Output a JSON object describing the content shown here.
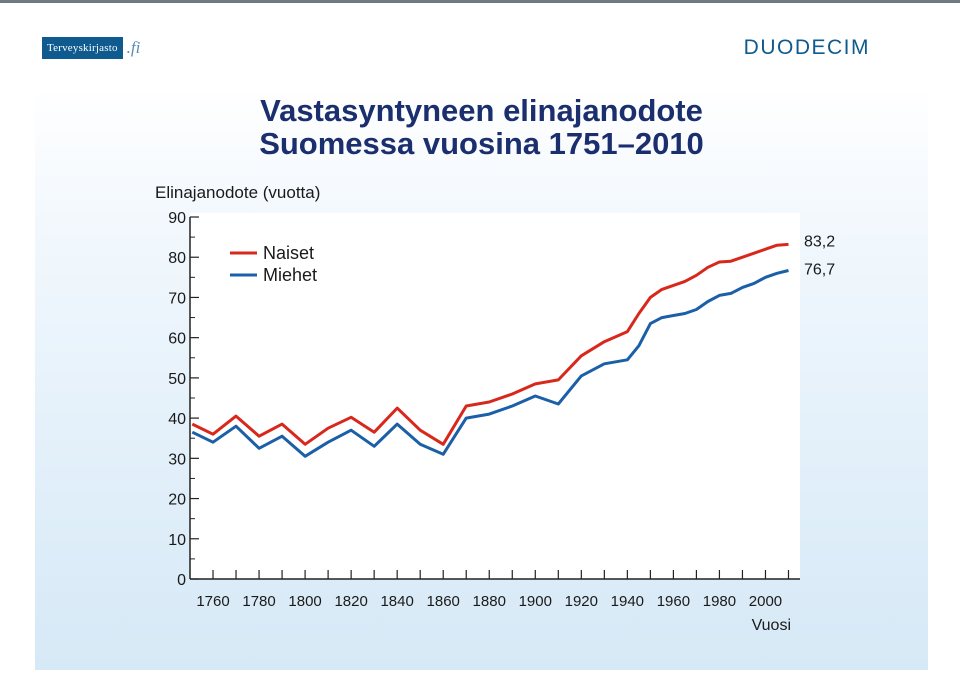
{
  "header": {
    "brand_left": "Terveyskirjasto",
    "brand_left_tld": ".fi",
    "brand_right": "DUODECIM"
  },
  "colors": {
    "naiset": "#d8281c",
    "miehet": "#1b5fa8",
    "title": "#1b2f6e",
    "brand": "#0f5a8e"
  },
  "chart_data": {
    "type": "line",
    "title_line1": "Vastasyntyneen elinajanodote",
    "title_line2": "Suomessa vuosina 1751–2010",
    "ylabel": "Elinajanodote (vuotta)",
    "xlabel": "Vuosi",
    "xlim": [
      1750,
      2015
    ],
    "ylim": [
      0,
      90
    ],
    "x_ticks": [
      1760,
      1770,
      1780,
      1790,
      1800,
      1810,
      1820,
      1830,
      1840,
      1850,
      1860,
      1870,
      1880,
      1890,
      1900,
      1910,
      1920,
      1930,
      1940,
      1950,
      1960,
      1970,
      1980,
      1990,
      2000,
      2010
    ],
    "x_tick_labels": [
      "1760",
      "1780",
      "1800",
      "1820",
      "1840",
      "1860",
      "1880",
      "1900",
      "1920",
      "1940",
      "1960",
      "1980",
      "2000"
    ],
    "y_ticks": [
      0,
      10,
      20,
      30,
      40,
      50,
      60,
      70,
      80,
      90
    ],
    "legend_position": "top-left",
    "grid": false,
    "series": [
      {
        "name": "Naiset",
        "color": "#d8281c",
        "end_label": "83,2",
        "points": [
          [
            1751,
            38.5
          ],
          [
            1760,
            36
          ],
          [
            1770,
            40.5
          ],
          [
            1780,
            35.5
          ],
          [
            1790,
            38.5
          ],
          [
            1800,
            33.5
          ],
          [
            1810,
            37.5
          ],
          [
            1820,
            40.2
          ],
          [
            1830,
            36.5
          ],
          [
            1840,
            42.5
          ],
          [
            1850,
            37
          ],
          [
            1860,
            33.5
          ],
          [
            1870,
            43
          ],
          [
            1880,
            44
          ],
          [
            1890,
            46
          ],
          [
            1900,
            48.5
          ],
          [
            1910,
            49.5
          ],
          [
            1920,
            55.5
          ],
          [
            1930,
            59
          ],
          [
            1940,
            61.5
          ],
          [
            1945,
            66
          ],
          [
            1950,
            70
          ],
          [
            1955,
            72
          ],
          [
            1960,
            73
          ],
          [
            1965,
            74
          ],
          [
            1970,
            75.5
          ],
          [
            1975,
            77.5
          ],
          [
            1980,
            78.8
          ],
          [
            1985,
            79
          ],
          [
            1990,
            80
          ],
          [
            1995,
            81
          ],
          [
            2000,
            82
          ],
          [
            2005,
            83
          ],
          [
            2010,
            83.2
          ]
        ]
      },
      {
        "name": "Miehet",
        "color": "#1b5fa8",
        "end_label": "76,7",
        "points": [
          [
            1751,
            36.5
          ],
          [
            1760,
            34
          ],
          [
            1770,
            38
          ],
          [
            1780,
            32.5
          ],
          [
            1790,
            35.5
          ],
          [
            1800,
            30.5
          ],
          [
            1810,
            34
          ],
          [
            1820,
            37
          ],
          [
            1830,
            33
          ],
          [
            1840,
            38.5
          ],
          [
            1850,
            33.5
          ],
          [
            1860,
            31
          ],
          [
            1870,
            40
          ],
          [
            1880,
            41
          ],
          [
            1890,
            43
          ],
          [
            1900,
            45.5
          ],
          [
            1910,
            43.5
          ],
          [
            1920,
            50.5
          ],
          [
            1930,
            53.5
          ],
          [
            1940,
            54.5
          ],
          [
            1945,
            58
          ],
          [
            1950,
            63.5
          ],
          [
            1955,
            65
          ],
          [
            1960,
            65.5
          ],
          [
            1965,
            66
          ],
          [
            1970,
            67
          ],
          [
            1975,
            69
          ],
          [
            1980,
            70.5
          ],
          [
            1985,
            71
          ],
          [
            1990,
            72.5
          ],
          [
            1995,
            73.5
          ],
          [
            2000,
            75
          ],
          [
            2005,
            76
          ],
          [
            2010,
            76.7
          ]
        ]
      }
    ]
  }
}
